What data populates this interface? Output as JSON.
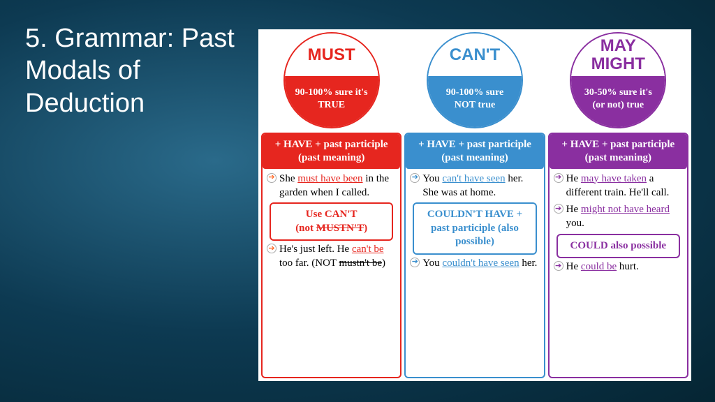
{
  "title": "5. Grammar: Past Modals of Deduction",
  "colors": {
    "red": "#e6261f",
    "blue": "#3a8fce",
    "purple": "#8a2fa0"
  },
  "columns": [
    {
      "color": "#e6261f",
      "bullet_color": "#ff6b2b",
      "circle_label": "MUST",
      "circle_sub": "90-100% sure it's TRUE",
      "header": "+ HAVE + past participle (past meaning)",
      "examples1": [
        {
          "pre": "She ",
          "hl": "must have been",
          "post": " in the garden when I called."
        }
      ],
      "note": {
        "line1": "Use CAN'T",
        "line2_pre": "(not ",
        "line2_strike": "MUSTN'T",
        "line2_post": ")"
      },
      "examples2": [
        {
          "pre": "He's just left. He ",
          "hl": "can't be",
          "post": " too far. (NOT ",
          "strike": "mustn't be",
          "tail": ")"
        }
      ]
    },
    {
      "color": "#3a8fce",
      "bullet_color": "#3a8fce",
      "circle_label": "CAN'T",
      "circle_sub": "90-100% sure NOT true",
      "header": "+ HAVE + past participle (past meaning)",
      "examples1": [
        {
          "pre": "You ",
          "hl": "can't have seen",
          "post": " her. She was at home."
        }
      ],
      "note": {
        "full": "COULDN'T HAVE + past participle (also possible)"
      },
      "examples2": [
        {
          "pre": "You ",
          "hl": "couldn't have seen",
          "post": " her."
        }
      ]
    },
    {
      "color": "#8a2fa0",
      "bullet_color": "#8a2fa0",
      "circle_label": "MAY MIGHT",
      "circle_sub": "30-50% sure it's (or not) true",
      "header": "+ HAVE + past participle (past meaning)",
      "examples1": [
        {
          "pre": "He ",
          "hl": "may have taken",
          "post": " a different train. He'll call."
        },
        {
          "pre": "He ",
          "hl": "might not have heard",
          "post": " you."
        }
      ],
      "note": {
        "full": "COULD also possible"
      },
      "examples2": [
        {
          "pre": "He ",
          "hl": "could be",
          "post": " hurt."
        }
      ]
    }
  ]
}
